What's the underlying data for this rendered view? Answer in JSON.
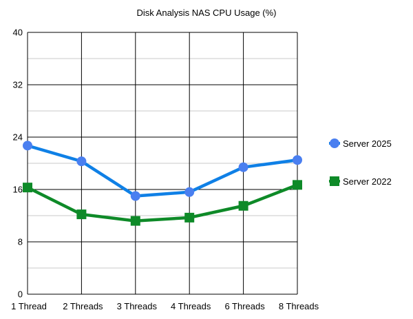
{
  "chart_data": {
    "type": "line",
    "title": "Disk Analysis NAS CPU Usage (%)",
    "xlabel": "",
    "ylabel": "",
    "categories": [
      "1 Thread",
      "2 Threads",
      "3 Threads",
      "4 Threads",
      "6 Threads",
      "8 Threads"
    ],
    "ylim": [
      0,
      40
    ],
    "yticks": [
      0,
      8,
      16,
      24,
      32,
      40
    ],
    "minor_grid_step": 4,
    "grid": true,
    "legend_position": "right",
    "series": [
      {
        "name": "Server 2025",
        "values": [
          22.7,
          20.3,
          15.0,
          15.6,
          19.4,
          20.5
        ],
        "color": "#0f80e6",
        "marker_color": "#4a7ff0",
        "marker": "circle"
      },
      {
        "name": "Server 2022",
        "values": [
          16.3,
          12.2,
          11.2,
          11.7,
          13.5,
          16.7
        ],
        "color": "#0e8a28",
        "marker_color": "#0e8a28",
        "marker": "square"
      }
    ]
  }
}
